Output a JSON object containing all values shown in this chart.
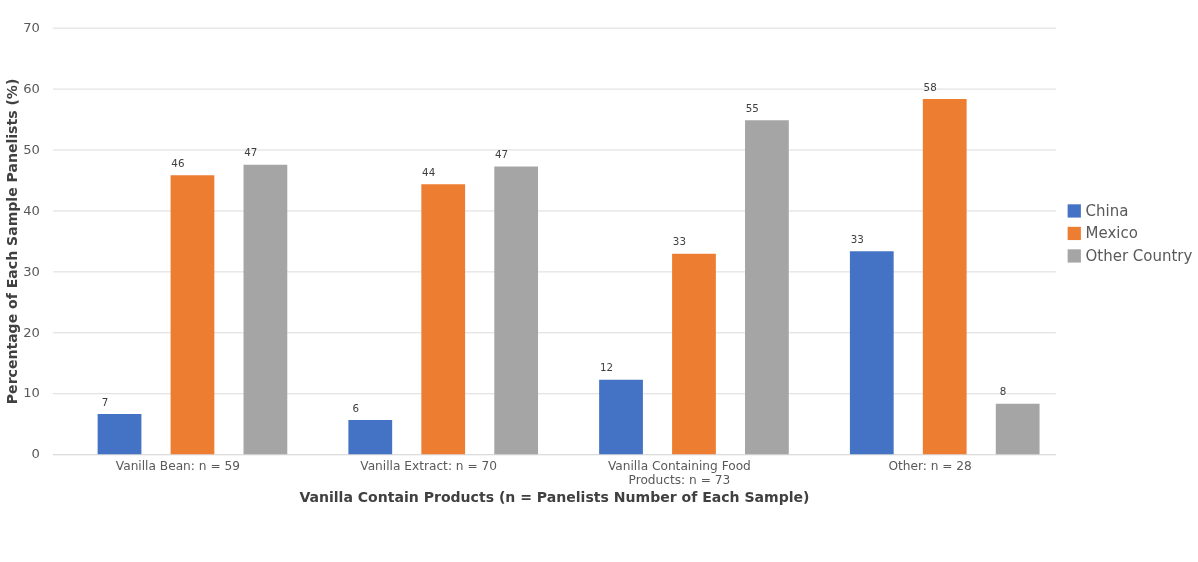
{
  "chart_data": {
    "type": "bar",
    "xlabel": "Vanilla Contain Products (n = Panelists Number of Each Sample)",
    "ylabel": "Percentage of Each Sample Panelists (%)",
    "categories": [
      "Vanilla Bean: n = 59",
      "Vanilla Extract: n = 70",
      "Vanilla Containing Food Products: n = 73",
      "Other: n = 28"
    ],
    "series": [
      {
        "name": "China",
        "color": "#4472c4",
        "values": [
          6.6,
          5.6,
          12.2,
          33.3
        ],
        "value_labels": [
          "7",
          "6",
          "12",
          "33"
        ]
      },
      {
        "name": "Mexico",
        "color": "#ed7d31",
        "values": [
          45.8,
          44.3,
          32.9,
          58.3
        ],
        "value_labels": [
          "46",
          "44",
          "33",
          "58"
        ]
      },
      {
        "name": "Other Country",
        "color": "#a5a5a5",
        "values": [
          47.5,
          47.2,
          54.8,
          8.3
        ],
        "value_labels": [
          "47",
          "47",
          "55",
          "8"
        ]
      }
    ],
    "ylim": [
      0,
      70
    ],
    "yticks": [
      0,
      10,
      20,
      30,
      40,
      50,
      60,
      70
    ],
    "grid": "y",
    "legend": "right"
  }
}
